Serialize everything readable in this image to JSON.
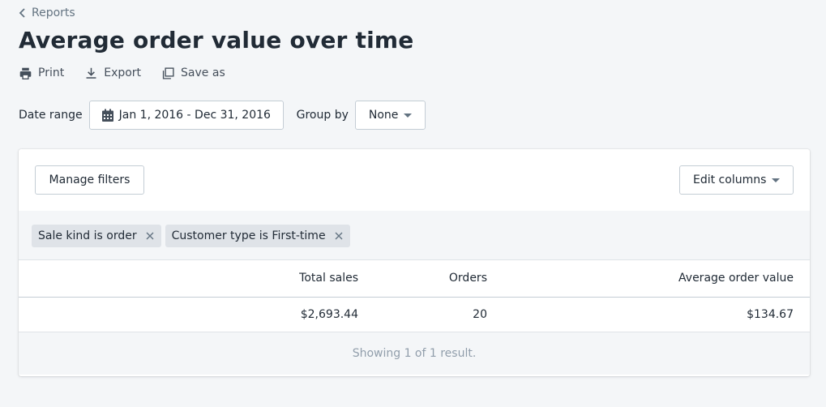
{
  "breadcrumb": {
    "label": "Reports"
  },
  "page": {
    "title": "Average order value over time"
  },
  "actions": {
    "print": "Print",
    "export": "Export",
    "save_as": "Save as"
  },
  "filters": {
    "date_range_label": "Date range",
    "date_range_value": "Jan 1, 2016 - Dec 31, 2016",
    "group_by_label": "Group by",
    "group_by_value": "None"
  },
  "card": {
    "manage_filters": "Manage filters",
    "edit_columns": "Edit columns",
    "tags": [
      {
        "label": "Sale kind is order"
      },
      {
        "label": "Customer type is First-time"
      }
    ],
    "table": {
      "headers": [
        "",
        "Total sales",
        "Orders",
        "Average order value"
      ],
      "rows": [
        [
          "",
          "$2,693.44",
          "20",
          "$134.67"
        ]
      ]
    },
    "footer": "Showing 1 of 1 result."
  },
  "colors": {
    "background": "#f4f6f8",
    "text": "#212b36",
    "muted": "#637381",
    "tag_bg": "#dfe3e8",
    "border": "#c4cdd5"
  },
  "icons": [
    "chevron-left-icon",
    "printer-icon",
    "download-icon",
    "copy-icon",
    "calendar-icon",
    "caret-down-icon",
    "close-icon"
  ]
}
